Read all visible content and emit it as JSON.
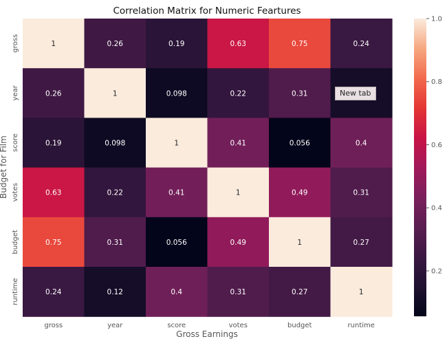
{
  "chart_data": {
    "type": "heatmap",
    "title": "Correlation Matrix for Numeric Feartures",
    "xlabel": "Gross Earnings",
    "ylabel": "Budget for Film",
    "x_categories": [
      "gross",
      "year",
      "score",
      "votes",
      "budget",
      "runtime"
    ],
    "y_categories": [
      "gross",
      "year",
      "score",
      "votes",
      "budget",
      "runtime"
    ],
    "values": [
      [
        1,
        0.26,
        0.19,
        0.63,
        0.75,
        0.24
      ],
      [
        0.26,
        1,
        0.098,
        0.22,
        0.31,
        0.12
      ],
      [
        0.19,
        0.098,
        1,
        0.41,
        0.056,
        0.4
      ],
      [
        0.63,
        0.22,
        0.41,
        1,
        0.49,
        0.31
      ],
      [
        0.75,
        0.31,
        0.056,
        0.49,
        1,
        0.27
      ],
      [
        0.24,
        0.12,
        0.4,
        0.31,
        0.27,
        1
      ]
    ],
    "value_labels": [
      [
        "1",
        "0.26",
        "0.19",
        "0.63",
        "0.75",
        "0.24"
      ],
      [
        "0.26",
        "1",
        "0.098",
        "0.22",
        "0.31",
        "0.12"
      ],
      [
        "0.19",
        "0.098",
        "1",
        "0.41",
        "0.056",
        "0.4"
      ],
      [
        "0.63",
        "0.22",
        "0.41",
        "1",
        "0.49",
        "0.31"
      ],
      [
        "0.75",
        "0.31",
        "0.056",
        "0.49",
        "1",
        "0.27"
      ],
      [
        "0.24",
        "0.12",
        "0.4",
        "0.31",
        "0.27",
        "1"
      ]
    ],
    "hidden_labels": [
      [
        1,
        5
      ]
    ],
    "colorbar": {
      "range": [
        0.056,
        1.0
      ],
      "ticks": [
        0.2,
        0.4,
        0.6,
        0.8,
        1.0
      ],
      "tick_labels": [
        "0.2",
        "0.4",
        "0.6",
        "0.8",
        "1.0"
      ],
      "colormap": "rocket"
    },
    "grid": false
  },
  "tooltip": {
    "text": "New tab"
  }
}
